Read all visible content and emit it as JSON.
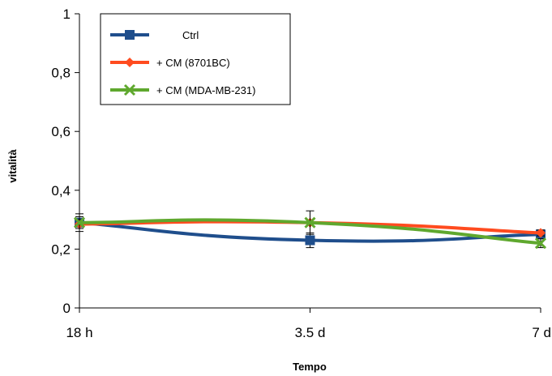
{
  "chart_data": {
    "type": "line",
    "categories": [
      "18 h",
      "3.5 d",
      "7 d"
    ],
    "xlabel": "Tempo",
    "ylabel": "vitalità",
    "ylim": [
      0,
      1
    ],
    "yticks": [
      0,
      0.2,
      0.4,
      0.6,
      0.8,
      1
    ],
    "ytick_labels": [
      "0",
      "0,2",
      "0,4",
      "0,6",
      "0,8",
      "1"
    ],
    "grid": false,
    "legend_position": "top-left",
    "series": [
      {
        "name": "Ctrl",
        "values": [
          0.29,
          0.23,
          0.25
        ],
        "errors": [
          0.03,
          0.025,
          0.01
        ],
        "color": "#1F4E8C",
        "marker": "square"
      },
      {
        "name": "+ CM (8701BC)",
        "values": [
          0.285,
          0.29,
          0.255
        ],
        "errors": [
          0.015,
          0.01,
          0.01
        ],
        "color": "#FF4B1F",
        "marker": "diamond"
      },
      {
        "name": "+ CM (MDA-MB-231)",
        "values": [
          0.29,
          0.29,
          0.22
        ],
        "errors": [
          0.02,
          0.04,
          0.015
        ],
        "color": "#5FA82E",
        "marker": "x"
      }
    ]
  }
}
